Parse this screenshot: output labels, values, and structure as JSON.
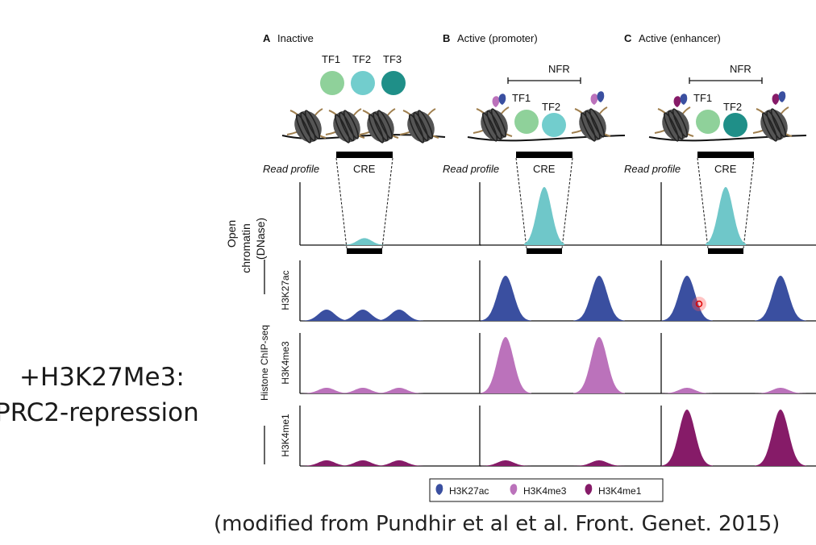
{
  "side_note": {
    "line1": "+H3K27Me3:",
    "line2": "PRC2-repression"
  },
  "credit": "(modified from Pundhir et al et al. Front. Genet. 2015)",
  "colors": {
    "tf1": "#8fd19a",
    "tf2": "#72cdcd",
    "tf3": "#1f8f88",
    "h3k27ac": "#3a4fa0",
    "h3k4me3": "#bb72bb",
    "h3k4me1": "#861b68",
    "dnase": "#6fc7c9",
    "nucleosome": "#555555",
    "tail": "#a08050"
  },
  "panels": [
    {
      "letter": "A",
      "title": "Inactive",
      "state": "inactive",
      "tf_labels": [
        "TF1",
        "TF2",
        "TF3"
      ],
      "nfr": ""
    },
    {
      "letter": "B",
      "title": "Active (promoter)",
      "state": "promoter",
      "tf_labels": [
        "TF1",
        "TF2"
      ],
      "nfr": "NFR"
    },
    {
      "letter": "C",
      "title": "Active (enhancer)",
      "state": "enhancer",
      "tf_labels": [
        "TF1",
        "TF2"
      ],
      "nfr": "NFR"
    }
  ],
  "labels": {
    "read_profile": "Read profile",
    "cre": "CRE",
    "open_chromatin": [
      "Open",
      "chromatin",
      "(DNase)"
    ],
    "histone_chip": "Histone ChIP-seq",
    "tracks": [
      "H3K27ac",
      "H3K4me3",
      "H3K4me1"
    ]
  },
  "signal_levels": {
    "dnase": {
      "inactive": 0.12,
      "promoter": 1.0,
      "enhancer": 1.0
    },
    "H3K27ac": {
      "inactive": 0.2,
      "promoter": 0.8,
      "enhancer": 0.8
    },
    "H3K4me3": {
      "inactive": 0.1,
      "promoter": 1.0,
      "enhancer": 0.1
    },
    "H3K4me1": {
      "inactive": 0.1,
      "promoter": 0.1,
      "enhancer": 1.0
    }
  },
  "legend": [
    {
      "label": "H3K27ac",
      "color": "#3a4fa0"
    },
    {
      "label": "H3K4me3",
      "color": "#bb72bb"
    },
    {
      "label": "H3K4me1",
      "color": "#861b68"
    }
  ]
}
